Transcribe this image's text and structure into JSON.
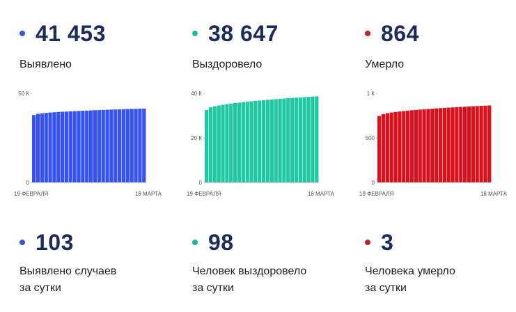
{
  "top_stats": [
    {
      "dot_color": "#3a56d6",
      "value": "41 453",
      "label": "Выявлено"
    },
    {
      "dot_color": "#1fb89a",
      "value": "38 647",
      "label": "Выздоровело"
    },
    {
      "dot_color": "#c8202a",
      "value": "864",
      "label": "Умерло"
    }
  ],
  "bottom_stats": [
    {
      "dot_color": "#3a56d6",
      "value": "103",
      "label_line1": "Выявлено случаев",
      "label_line2": "за сутки"
    },
    {
      "dot_color": "#1fb89a",
      "value": "98",
      "label_line1": "Человек выздоровело",
      "label_line2": "за сутки"
    },
    {
      "dot_color": "#c8202a",
      "value": "3",
      "label_line1": "Человека умерло",
      "label_line2": "за сутки"
    }
  ],
  "chart_data": [
    {
      "type": "bar",
      "color": "#3553f0",
      "x_start_label": "19 ФЕВРАЛЯ",
      "x_end_label": "18 МАРТА",
      "y_tick_labels": [
        "0",
        "50 К"
      ],
      "y_tick_values": [
        0,
        50000
      ],
      "ylim": [
        0,
        50000
      ],
      "bar_count": 28,
      "start_value": 37800,
      "end_value": 41453
    },
    {
      "type": "bar",
      "color": "#20c9a3",
      "x_start_label": "19 ФЕВРАЛЯ",
      "x_end_label": "18 МАРТА",
      "y_tick_labels": [
        "0",
        "20 К",
        "40 К"
      ],
      "y_tick_values": [
        0,
        20000,
        40000
      ],
      "ylim": [
        0,
        40000
      ],
      "bar_count": 28,
      "start_value": 32500,
      "end_value": 38647
    },
    {
      "type": "bar",
      "color": "#d8121c",
      "x_start_label": "19 ФЕВРАЛЯ",
      "x_end_label": "18 МАРТА",
      "y_tick_labels": [
        "0",
        "500",
        "1 К"
      ],
      "y_tick_values": [
        0,
        500,
        1000
      ],
      "ylim": [
        0,
        1000
      ],
      "bar_count": 28,
      "start_value": 745,
      "end_value": 864
    }
  ]
}
